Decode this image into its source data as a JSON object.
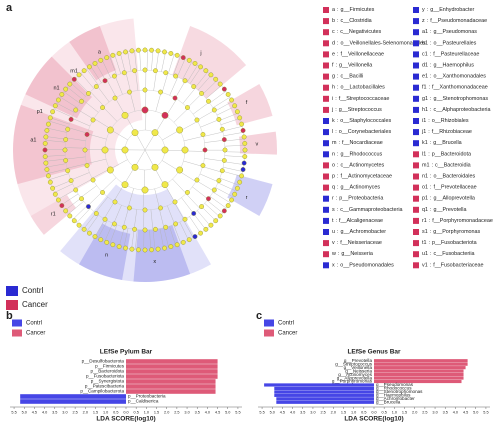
{
  "panels": [
    "a",
    "b",
    "c"
  ],
  "cladogram": {
    "sep": ":",
    "groups": [
      {
        "name": "Contrl",
        "color": "#2a2ad2"
      },
      {
        "name": "Cancer",
        "color": "#d2305a"
      }
    ],
    "legend_columns": [
      [
        {
          "key": "a",
          "label": "g__Firmicutes",
          "group": "Cancer"
        },
        {
          "key": "b",
          "label": "c__Clostridia",
          "group": "Cancer"
        },
        {
          "key": "c",
          "label": "c__Negativicutes",
          "group": "Cancer"
        },
        {
          "key": "d",
          "label": "o__Veillonellales-Selenomonadales",
          "group": "Cancer"
        },
        {
          "key": "e",
          "label": "f__Veillonellaceae",
          "group": "Cancer"
        },
        {
          "key": "f",
          "label": "g__Veillonella",
          "group": "Cancer"
        },
        {
          "key": "g",
          "label": "c__Bacilli",
          "group": "Cancer"
        },
        {
          "key": "h",
          "label": "o__Lactobacillales",
          "group": "Cancer"
        },
        {
          "key": "i",
          "label": "f__Streptococcaceae",
          "group": "Cancer"
        },
        {
          "key": "j",
          "label": "g__Streptococcus",
          "group": "Cancer"
        },
        {
          "key": "k",
          "label": "o__Staphylococcales",
          "group": "Contrl"
        },
        {
          "key": "l",
          "label": "o__Corynebacteriales",
          "group": "Contrl"
        },
        {
          "key": "m",
          "label": "f__Nocardiaceae",
          "group": "Contrl"
        },
        {
          "key": "n",
          "label": "g__Rhodococcus",
          "group": "Contrl"
        },
        {
          "key": "o",
          "label": "c__Actinomycetes",
          "group": "Cancer"
        },
        {
          "key": "p",
          "label": "f__Actinomycetaceae",
          "group": "Cancer"
        },
        {
          "key": "q",
          "label": "g__Actinomyces",
          "group": "Cancer"
        },
        {
          "key": "r",
          "label": "p__Proteobacteria",
          "group": "Contrl"
        },
        {
          "key": "s",
          "label": "c__Gammaproteobacteria",
          "group": "Contrl"
        },
        {
          "key": "t",
          "label": "f__Alcaligenaceae",
          "group": "Contrl"
        },
        {
          "key": "u",
          "label": "g__Achromobacter",
          "group": "Contrl"
        },
        {
          "key": "v",
          "label": "f__Neisseriaceae",
          "group": "Cancer"
        },
        {
          "key": "w",
          "label": "g__Neisseria",
          "group": "Cancer"
        },
        {
          "key": "x",
          "label": "o__Pseudomonadales",
          "group": "Contrl"
        }
      ],
      [
        {
          "key": "y",
          "label": "g__Enhydrobacter",
          "group": "Contrl"
        },
        {
          "key": "z",
          "label": "f__Pseudomonadaceae",
          "group": "Contrl"
        },
        {
          "key": "a1",
          "label": "g__Pseudomonas",
          "group": "Contrl"
        },
        {
          "key": "b1",
          "label": "o__Pasteurellales",
          "group": "Contrl"
        },
        {
          "key": "c1",
          "label": "f__Pasteurellaceae",
          "group": "Contrl"
        },
        {
          "key": "d1",
          "label": "g__Haemophilus",
          "group": "Contrl"
        },
        {
          "key": "e1",
          "label": "o__Xanthomonadales",
          "group": "Contrl"
        },
        {
          "key": "f1",
          "label": "f__Xanthomonadaceae",
          "group": "Contrl"
        },
        {
          "key": "g1",
          "label": "g__Stenotrophomonas",
          "group": "Contrl"
        },
        {
          "key": "h1",
          "label": "c__Alphaproteobacteria",
          "group": "Contrl"
        },
        {
          "key": "i1",
          "label": "o__Rhizobiales",
          "group": "Contrl"
        },
        {
          "key": "j1",
          "label": "f__Rhizobiaceae",
          "group": "Contrl"
        },
        {
          "key": "k1",
          "label": "g__Brucella",
          "group": "Contrl"
        },
        {
          "key": "l1",
          "label": "p__Bacteroidota",
          "group": "Cancer"
        },
        {
          "key": "m1",
          "label": "c__Bacteroidia",
          "group": "Cancer"
        },
        {
          "key": "n1",
          "label": "o__Bacteroidales",
          "group": "Cancer"
        },
        {
          "key": "o1",
          "label": "f__Prevotellaceae",
          "group": "Cancer"
        },
        {
          "key": "p1",
          "label": "g__Alloprevotella",
          "group": "Cancer"
        },
        {
          "key": "q1",
          "label": "g__Prevotella",
          "group": "Cancer"
        },
        {
          "key": "r1",
          "label": "f__Porphyromonadaceae",
          "group": "Cancer"
        },
        {
          "key": "s1",
          "label": "g__Porphyromonas",
          "group": "Cancer"
        },
        {
          "key": "t1",
          "label": "p__Fusobacteriota",
          "group": "Cancer"
        },
        {
          "key": "u1",
          "label": "c__Fusobacteriia",
          "group": "Cancer"
        },
        {
          "key": "v1",
          "label": "f__Fusobacteriaceae",
          "group": "Cancer"
        }
      ]
    ]
  },
  "chart_data": [
    {
      "type": "bar",
      "orientation": "horizontal",
      "title": "LEfSe Pylum Bar",
      "xlabel": "LDA SCORE(log10)",
      "categories": [
        "p__Desulfobacterota",
        "p__Firmicutes",
        "p__Bacteroidota",
        "p__Fusobacteriota",
        "p__Synergistota",
        "p__Patescibacteria",
        "p__Campilobacterota",
        "p__Proteobacteria",
        "p__Caldiserica"
      ],
      "series": [
        {
          "name": "Contrl",
          "color": "#4646e6",
          "values": [
            null,
            null,
            null,
            null,
            null,
            null,
            null,
            -5.2,
            -5.2
          ]
        },
        {
          "name": "Cancer",
          "color": "#de5a78",
          "values": [
            4.5,
            4.5,
            4.5,
            4.5,
            4.4,
            4.4,
            4.4,
            null,
            null
          ]
        }
      ],
      "xlim": [
        -5.7,
        5.7
      ],
      "xticks": [
        {
          "value": -5.5,
          "label": "5.5"
        },
        {
          "value": -5,
          "label": "5.0"
        },
        {
          "value": -4.5,
          "label": "4.5"
        },
        {
          "value": -4,
          "label": "4.0"
        },
        {
          "value": -3.5,
          "label": "3.5"
        },
        {
          "value": -3,
          "label": "3.0"
        },
        {
          "value": -2.5,
          "label": "2.5"
        },
        {
          "value": -2,
          "label": "2.0"
        },
        {
          "value": -1.5,
          "label": "1.5"
        },
        {
          "value": -1,
          "label": "1.0"
        },
        {
          "value": -0.5,
          "label": "0.5"
        },
        {
          "value": 0,
          "label": "0.0"
        },
        {
          "value": 0.5,
          "label": "0.5"
        },
        {
          "value": 1,
          "label": "1.0"
        },
        {
          "value": 1.5,
          "label": "1.5"
        },
        {
          "value": 2,
          "label": "2.0"
        },
        {
          "value": 2.5,
          "label": "2.5"
        },
        {
          "value": 3,
          "label": "3.0"
        },
        {
          "value": 3.5,
          "label": "3.5"
        },
        {
          "value": 4,
          "label": "4.0"
        },
        {
          "value": 4.5,
          "label": "4.5"
        },
        {
          "value": 5,
          "label": "5.0"
        },
        {
          "value": 5.5,
          "label": "5.5"
        }
      ]
    },
    {
      "type": "bar",
      "orientation": "horizontal",
      "title": "LEfSe Genus Bar",
      "xlabel": "LDA SCORE(log10)",
      "categories": [
        "g__Prevotella",
        "g__Streptococcus",
        "g__Veillonella",
        "g__Neisseria",
        "g__Actinomyces",
        "g__Alloprevotella",
        "g__Porphyromonas",
        "g__Pseudomonas",
        "g__Rhodococcus",
        "g__Stenotrophomonas",
        "g__Haemophilus",
        "g__Achromobacter",
        "g__Brucella"
      ],
      "series": [
        {
          "name": "Contrl",
          "color": "#4646e6",
          "values": [
            null,
            null,
            null,
            null,
            null,
            null,
            null,
            -5.4,
            -4.9,
            -4.9,
            -4.9,
            -4.8,
            -4.8
          ]
        },
        {
          "name": "Cancer",
          "color": "#de5a78",
          "values": [
            4.6,
            4.6,
            4.5,
            4.4,
            4.4,
            4.4,
            4.3,
            null,
            null,
            null,
            null,
            null,
            null
          ]
        }
      ],
      "xlim": [
        -5.7,
        5.7
      ],
      "xticks": [
        {
          "value": -5.5,
          "label": "5.5"
        },
        {
          "value": -5,
          "label": "5.0"
        },
        {
          "value": -4.5,
          "label": "4.5"
        },
        {
          "value": -4,
          "label": "4.0"
        },
        {
          "value": -3.5,
          "label": "3.5"
        },
        {
          "value": -3,
          "label": "3.0"
        },
        {
          "value": -2.5,
          "label": "2.5"
        },
        {
          "value": -2,
          "label": "2.0"
        },
        {
          "value": -1.5,
          "label": "1.5"
        },
        {
          "value": -1,
          "label": "1.0"
        },
        {
          "value": -0.5,
          "label": "0.5"
        },
        {
          "value": 0,
          "label": "0.0"
        },
        {
          "value": 0.5,
          "label": "0.5"
        },
        {
          "value": 1,
          "label": "1.0"
        },
        {
          "value": 1.5,
          "label": "1.5"
        },
        {
          "value": 2,
          "label": "2.0"
        },
        {
          "value": 2.5,
          "label": "2.5"
        },
        {
          "value": 3,
          "label": "3.0"
        },
        {
          "value": 3.5,
          "label": "3.5"
        },
        {
          "value": 4,
          "label": "4.0"
        },
        {
          "value": 4.5,
          "label": "4.5"
        },
        {
          "value": 5,
          "label": "5.0"
        },
        {
          "value": 5.5,
          "label": "5.5"
        }
      ]
    }
  ]
}
